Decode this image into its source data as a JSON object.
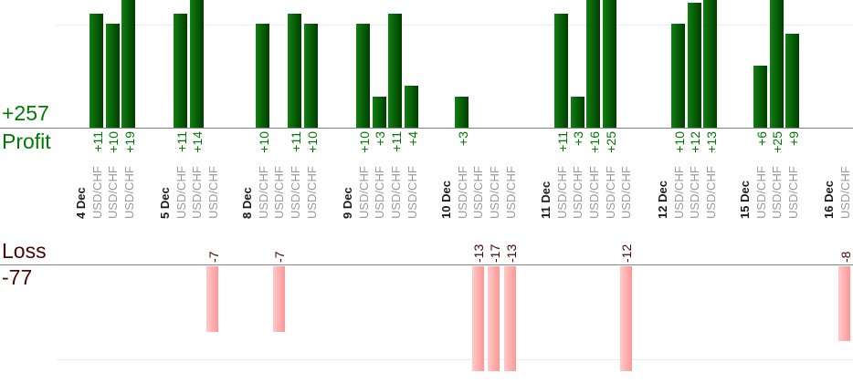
{
  "chart_data": {
    "type": "bar",
    "title": "",
    "description_visible_text_only": "Daily trade results split into a profit panel (top, green bars) and a loss panel (bottom, pink bars); every bar is one USD/CHF trade, values labeled next to the axis lines",
    "panels": {
      "profit": {
        "axis_label": "Profit",
        "total_label": "+257",
        "total": 257,
        "gridline_value": 10,
        "bars_clipped_at_top": true
      },
      "loss": {
        "axis_label": "Loss",
        "total_label": "-77",
        "total": -77,
        "gridline_value": -10,
        "bars_clipped_at_bottom": true
      }
    },
    "legend": "none",
    "grid": "single light gridline per panel at +/-10",
    "groups": [
      {
        "date": "4 Dec",
        "trades": [
          {
            "symbol": "USD/CHF",
            "value": 11,
            "label": "+11"
          },
          {
            "symbol": "USD/CHF",
            "value": 10,
            "label": "+10"
          },
          {
            "symbol": "USD/CHF",
            "value": 19,
            "label": "+19"
          }
        ]
      },
      {
        "date": "5 Dec",
        "trades": [
          {
            "symbol": "USD/CHF",
            "value": 11,
            "label": "+11"
          },
          {
            "symbol": "USD/CHF",
            "value": 14,
            "label": "+14"
          },
          {
            "symbol": "USD/CHF",
            "value": -7,
            "label": "-7"
          }
        ]
      },
      {
        "date": "8 Dec",
        "trades": [
          {
            "symbol": "USD/CHF",
            "value": 10,
            "label": "+10"
          },
          {
            "symbol": "USD/CHF",
            "value": -7,
            "label": "-7"
          },
          {
            "symbol": "USD/CHF",
            "value": 11,
            "label": "+11"
          },
          {
            "symbol": "USD/CHF",
            "value": 10,
            "label": "+10"
          }
        ]
      },
      {
        "date": "9 Dec",
        "trades": [
          {
            "symbol": "USD/CHF",
            "value": 10,
            "label": "+10"
          },
          {
            "symbol": "USD/CHF",
            "value": 3,
            "label": "+3"
          },
          {
            "symbol": "USD/CHF",
            "value": 11,
            "label": "+11"
          },
          {
            "symbol": "USD/CHF",
            "value": 4,
            "label": "+4"
          }
        ]
      },
      {
        "date": "10 Dec",
        "trades": [
          {
            "symbol": "USD/CHF",
            "value": 3,
            "label": "+3"
          },
          {
            "symbol": "USD/CHF",
            "value": -13,
            "label": "-13"
          },
          {
            "symbol": "USD/CHF",
            "value": -17,
            "label": "-17"
          },
          {
            "symbol": "USD/CHF",
            "value": -13,
            "label": "-13"
          }
        ]
      },
      {
        "date": "11 Dec",
        "trades": [
          {
            "symbol": "USD/CHF",
            "value": 11,
            "label": "+11"
          },
          {
            "symbol": "USD/CHF",
            "value": 3,
            "label": "+3"
          },
          {
            "symbol": "USD/CHF",
            "value": 16,
            "label": "+16"
          },
          {
            "symbol": "USD/CHF",
            "value": 25,
            "label": "+25"
          },
          {
            "symbol": "USD/CHF",
            "value": -12,
            "label": "-12"
          }
        ]
      },
      {
        "date": "12 Dec",
        "trades": [
          {
            "symbol": "USD/CHF",
            "value": 10,
            "label": "+10"
          },
          {
            "symbol": "USD/CHF",
            "value": 12,
            "label": "+12"
          },
          {
            "symbol": "USD/CHF",
            "value": 13,
            "label": "+13"
          }
        ]
      },
      {
        "date": "15 Dec",
        "trades": [
          {
            "symbol": "USD/CHF",
            "value": 6,
            "label": "+6"
          },
          {
            "symbol": "USD/CHF",
            "value": 25,
            "label": "+25"
          },
          {
            "symbol": "USD/CHF",
            "value": 9,
            "label": "+9"
          }
        ]
      },
      {
        "date": "16 Dec",
        "trades": [
          {
            "symbol": "USD/CHF",
            "value": -8,
            "label": "-8"
          }
        ]
      }
    ],
    "colors": {
      "profit_text": "#007a00",
      "loss_text": "#4b0505",
      "date_text": "#1c1c1c",
      "symbol_text": "#9a9a9a",
      "axis_line": "#848484",
      "gridline": "#ececec",
      "profit_bar_gradient": [
        "#108010",
        "#003e00"
      ],
      "loss_bar_gradient": [
        "#ffcaca",
        "#ff9696"
      ],
      "background": "#ffffff"
    }
  }
}
